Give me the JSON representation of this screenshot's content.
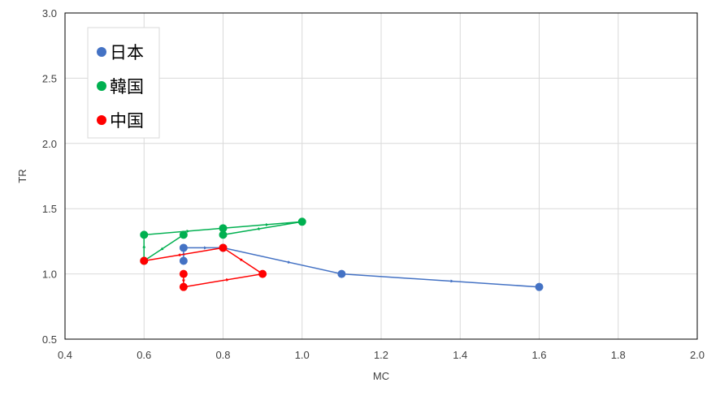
{
  "chart_data": {
    "type": "scatter",
    "xlabel": "MC",
    "ylabel": "TR",
    "xlim": [
      0.4,
      2.0
    ],
    "ylim": [
      0.5,
      3.0
    ],
    "x_ticks": [
      "0.4",
      "0.6",
      "0.8",
      "1.0",
      "1.2",
      "1.4",
      "1.6",
      "1.8",
      "2.0"
    ],
    "y_ticks": [
      "0.5",
      "1.0",
      "1.5",
      "2.0",
      "2.5",
      "3.0"
    ],
    "grid": true,
    "legend_position": "top-left",
    "series": [
      {
        "name": "日本",
        "color": "#4472C4",
        "points": [
          [
            0.7,
            1.1
          ],
          [
            0.7,
            1.2
          ],
          [
            0.8,
            1.2
          ],
          [
            1.1,
            1.0
          ],
          [
            1.6,
            0.9
          ]
        ]
      },
      {
        "name": "韓国",
        "color": "#00B050",
        "points": [
          [
            0.7,
            1.3
          ],
          [
            0.6,
            1.1
          ],
          [
            0.6,
            1.3
          ],
          [
            0.8,
            1.35
          ],
          [
            1.0,
            1.4
          ],
          [
            0.8,
            1.3
          ]
        ]
      },
      {
        "name": "中国",
        "color": "#FF0000",
        "points": [
          [
            0.7,
            1.0
          ],
          [
            0.7,
            0.9
          ],
          [
            0.9,
            1.0
          ],
          [
            0.8,
            1.2
          ],
          [
            0.6,
            1.1
          ]
        ]
      }
    ]
  }
}
